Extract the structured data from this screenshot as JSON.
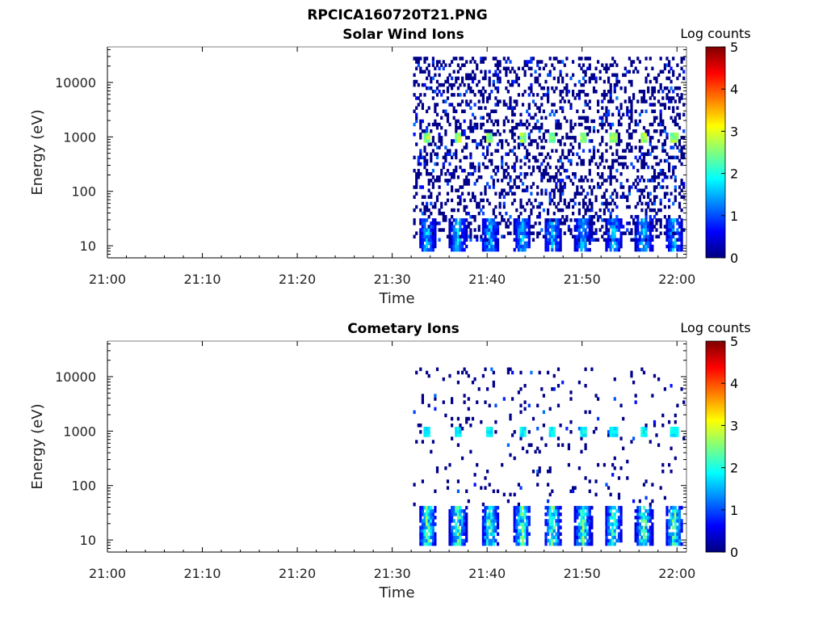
{
  "figure": {
    "filename": "RPCICA160720T21.PNG"
  },
  "colormap": [
    "#00007f",
    "#0000ff",
    "#007fff",
    "#00ffff",
    "#7fff7f",
    "#ffff00",
    "#ff7f00",
    "#ff0000",
    "#7f0000"
  ],
  "chart_data": [
    {
      "type": "heatmap",
      "title": "Solar Wind Ions",
      "xlabel": "Time",
      "ylabel": "Energy (eV)",
      "x_ticks": [
        "21:00",
        "21:10",
        "21:20",
        "21:30",
        "21:40",
        "21:50",
        "22:00"
      ],
      "x_range_min": [
        0,
        61
      ],
      "y_scale": "log",
      "y_range_eV": [
        6,
        45000
      ],
      "y_ticks": [
        10,
        100,
        1000,
        10000
      ],
      "y_tick_labels": [
        "10",
        "100",
        "1000",
        "10000"
      ],
      "colorbar": {
        "label": "Log counts",
        "min": 0,
        "max": 5,
        "ticks": [
          "0",
          "1",
          "2",
          "3",
          "4",
          "5"
        ]
      },
      "data_start_min": 32.2,
      "data_end_min": 60.6,
      "burst_times_min": [
        33.6,
        36.8,
        40.2,
        43.6,
        46.8,
        50.0,
        53.2,
        56.4,
        59.6
      ],
      "scatter_density": 0.28,
      "scatter_energy_range_eV": [
        12,
        30000
      ],
      "peak_1keV_log_counts": 2.8,
      "low_energy_band_eV": [
        8,
        32
      ],
      "low_energy_band_peak_log_counts": 1.9
    },
    {
      "type": "heatmap",
      "title": "Cometary Ions",
      "xlabel": "Time",
      "ylabel": "Energy (eV)",
      "x_ticks": [
        "21:00",
        "21:10",
        "21:20",
        "21:30",
        "21:40",
        "21:50",
        "22:00"
      ],
      "x_range_min": [
        0,
        61
      ],
      "y_scale": "log",
      "y_range_eV": [
        6,
        45000
      ],
      "y_ticks": [
        10,
        100,
        1000,
        10000
      ],
      "y_tick_labels": [
        "10",
        "100",
        "1000",
        "10000"
      ],
      "colorbar": {
        "label": "Log counts",
        "min": 0,
        "max": 5,
        "ticks": [
          "0",
          "1",
          "2",
          "3",
          "4",
          "5"
        ]
      },
      "data_start_min": 32.2,
      "data_end_min": 60.6,
      "burst_times_min": [
        33.6,
        36.8,
        40.2,
        43.6,
        46.8,
        50.0,
        53.2,
        56.4,
        59.6
      ],
      "scatter_density": 0.05,
      "scatter_energy_range_eV": [
        40,
        14000
      ],
      "peak_1keV_log_counts": 2.0,
      "low_energy_band_eV": [
        8,
        40
      ],
      "low_energy_band_peak_log_counts": 2.7
    }
  ]
}
